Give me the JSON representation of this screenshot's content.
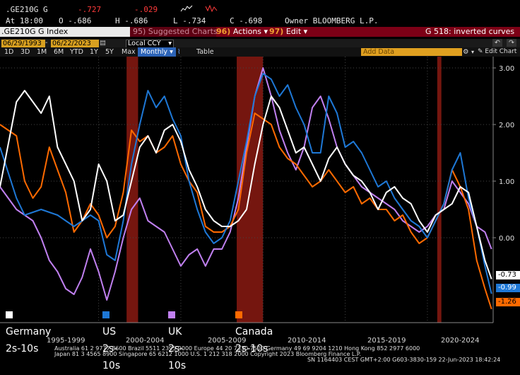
{
  "header": {
    "ticker": ".GE210G G",
    "last": "-.727",
    "change": "-.029",
    "at_label": "At 18:00",
    "open_label": "O -.686",
    "high_label": "H -.686",
    "low_label": "L -.734",
    "close_label": "C -.698",
    "owner_label": "Owner BLOOMBERG L.P."
  },
  "command_bar": {
    "index_label": ".GE210G G Index",
    "suggested_num": "95)",
    "suggested_label": "Suggested Charts",
    "actions_num": "96)",
    "actions_label": "Actions",
    "edit_num": "97)",
    "edit_label": "Edit",
    "title": "G 518: inverted curves"
  },
  "toolbar": {
    "start_date": "06/29/1993",
    "end_date": "06/22/2023",
    "currency": "Local CCY",
    "ranges": [
      "1D",
      "3D",
      "1M",
      "6M",
      "YTD",
      "1Y",
      "5Y",
      "Max"
    ],
    "frequency": "Monthly",
    "table_label": "Table",
    "add_data_placeholder": "Add Data",
    "edit_chart_label": "Edit Chart"
  },
  "legend": [
    {
      "name": "Germany 2s-10s",
      "color": "#ffffff"
    },
    {
      "name": "US 2s-10s",
      "color": "#1e78d6"
    },
    {
      "name": "UK 2s-10s",
      "color": "#c080f0"
    },
    {
      "name": "Canada 2s-10s",
      "color": "#ff6a00"
    }
  ],
  "last_values": [
    {
      "value": "-0.73",
      "bg": "#ffffff",
      "fg": "#000000"
    },
    {
      "value": "-0.99",
      "bg": "#1e78d6",
      "fg": "#ffffff"
    },
    {
      "value": "-1.26",
      "bg": "#ff6a00",
      "fg": "#000000"
    }
  ],
  "x_labels": [
    "1995-1999",
    "2000-2004",
    "2005-2009",
    "2010-2014",
    "2015-2019",
    "2020-2024"
  ],
  "footer": {
    "line1": "Australia 61 2 9777 8600 Brazil 5511 2395 9000 Europe 44 20 7330 7500 Germany 49 69 9204 1210 Hong Kong 852 2977 6000",
    "line2": "Japan 81 3 4565 8900        Singapore 65 6212 1000        U.S. 1 212 318 2000           Copyright 2023 Bloomberg Finance L.P.",
    "line3": "SN 1164403 CEST GMT+2:00 G603-3830-159 22-Jun-2023 18:42:24"
  },
  "chart_data": {
    "type": "line",
    "x_range": [
      1993.5,
      2023.5
    ],
    "ylim": [
      -1.5,
      3.2
    ],
    "yticks": [
      "3.00",
      "2.00",
      "1.00",
      "0.00"
    ],
    "recession_bands": [
      [
        2001.2,
        2001.9
      ],
      [
        2007.9,
        2009.5
      ],
      [
        2020.1,
        2020.35
      ]
    ],
    "series": [
      {
        "name": "Germany 2s-10s",
        "color": "#ffffff",
        "x": [
          1993.5,
          1994.5,
          1995,
          1996,
          1996.5,
          1997,
          1997.5,
          1998,
          1998.5,
          1999,
          1999.5,
          2000,
          2000.5,
          2001,
          2001.5,
          2002,
          2002.5,
          2003,
          2003.5,
          2004,
          2004.5,
          2005,
          2005.5,
          2006,
          2006.5,
          2007,
          2007.5,
          2008,
          2008.5,
          2009,
          2009.5,
          2010,
          2010.5,
          2011,
          2011.5,
          2012,
          2012.5,
          2013,
          2013.5,
          2014,
          2014.5,
          2015,
          2015.5,
          2016,
          2016.5,
          2017,
          2017.5,
          2018,
          2018.5,
          2019,
          2019.5,
          2020,
          2020.5,
          2021,
          2021.5,
          2022,
          2022.5,
          2023,
          2023.4
        ],
        "y": [
          0.9,
          2.4,
          2.6,
          2.2,
          2.5,
          1.6,
          1.3,
          1.0,
          0.3,
          0.5,
          1.3,
          1.0,
          0.3,
          0.4,
          1.0,
          1.6,
          1.8,
          1.5,
          1.9,
          2.0,
          1.7,
          1.2,
          0.9,
          0.5,
          0.3,
          0.2,
          0.2,
          0.3,
          0.5,
          1.3,
          2.0,
          2.5,
          2.3,
          1.9,
          1.5,
          1.6,
          1.3,
          1.0,
          1.4,
          1.6,
          1.3,
          1.1,
          1.0,
          0.8,
          0.5,
          0.8,
          0.9,
          0.7,
          0.6,
          0.3,
          0.1,
          0.4,
          0.5,
          0.6,
          0.9,
          0.8,
          0.2,
          -0.4,
          -0.73
        ]
      },
      {
        "name": "US 2s-10s",
        "color": "#1e78d6",
        "x": [
          1993.5,
          1994.5,
          1995,
          1996,
          1997,
          1998,
          1999,
          1999.5,
          2000,
          2000.5,
          2001,
          2001.5,
          2002,
          2002.5,
          2003,
          2003.5,
          2004,
          2004.5,
          2005,
          2005.5,
          2006,
          2006.5,
          2007,
          2007.5,
          2008,
          2008.5,
          2009,
          2009.5,
          2010,
          2010.5,
          2011,
          2011.5,
          2012,
          2012.5,
          2013,
          2013.5,
          2014,
          2014.5,
          2015,
          2015.5,
          2016,
          2016.5,
          2017,
          2017.5,
          2018,
          2018.5,
          2019,
          2019.5,
          2020,
          2020.5,
          2021,
          2021.5,
          2022,
          2022.5,
          2023,
          2023.4
        ],
        "y": [
          1.6,
          0.7,
          0.4,
          0.5,
          0.4,
          0.2,
          0.4,
          0.3,
          -0.3,
          -0.4,
          0.3,
          1.3,
          2.0,
          2.6,
          2.3,
          2.5,
          2.1,
          1.8,
          1.0,
          0.5,
          0.1,
          -0.1,
          0.0,
          0.3,
          1.0,
          1.7,
          2.5,
          2.9,
          2.8,
          2.5,
          2.7,
          2.3,
          2.0,
          1.5,
          1.5,
          2.5,
          2.2,
          1.6,
          1.7,
          1.5,
          1.2,
          0.9,
          1.0,
          0.7,
          0.5,
          0.3,
          0.2,
          0.0,
          0.3,
          0.6,
          1.2,
          1.5,
          0.7,
          0.2,
          -0.5,
          -0.99
        ]
      },
      {
        "name": "UK 2s-10s",
        "color": "#c080f0",
        "x": [
          1993.5,
          1994.5,
          1995,
          1995.5,
          1996,
          1996.5,
          1997,
          1997.5,
          1998,
          1998.5,
          1999,
          1999.5,
          2000,
          2000.5,
          2001,
          2001.5,
          2002,
          2002.5,
          2003,
          2003.5,
          2004,
          2004.5,
          2005,
          2005.5,
          2006,
          2006.5,
          2007,
          2007.5,
          2008,
          2008.5,
          2009,
          2009.5,
          2010,
          2010.5,
          2011,
          2011.5,
          2012,
          2012.5,
          2013,
          2013.5,
          2014,
          2014.5,
          2015,
          2015.5,
          2016,
          2016.5,
          2017,
          2017.5,
          2018,
          2018.5,
          2019,
          2019.5,
          2020,
          2020.5,
          2021,
          2021.5,
          2022,
          2022.5,
          2023,
          2023.4
        ],
        "y": [
          0.9,
          0.5,
          0.4,
          0.3,
          0.0,
          -0.4,
          -0.6,
          -0.9,
          -1.0,
          -0.7,
          -0.2,
          -0.6,
          -1.1,
          -0.6,
          0.0,
          0.5,
          0.7,
          0.3,
          0.2,
          0.1,
          -0.2,
          -0.5,
          -0.3,
          -0.2,
          -0.5,
          -0.2,
          -0.2,
          0.1,
          0.7,
          1.6,
          2.5,
          3.0,
          2.5,
          1.9,
          1.5,
          1.2,
          1.6,
          2.3,
          2.5,
          2.1,
          1.6,
          1.3,
          1.1,
          0.9,
          0.8,
          0.7,
          0.6,
          0.5,
          0.3,
          0.2,
          0.1,
          0.2,
          0.4,
          0.5,
          1.0,
          0.8,
          0.6,
          0.2,
          0.1,
          -0.2
        ]
      },
      {
        "name": "Canada 2s-10s",
        "color": "#ff6a00",
        "x": [
          1993.5,
          1994.5,
          1995,
          1995.5,
          1996,
          1996.5,
          1997,
          1997.5,
          1998,
          1998.5,
          1999,
          1999.5,
          2000,
          2000.5,
          2001,
          2001.5,
          2002,
          2002.5,
          2003,
          2003.5,
          2004,
          2004.5,
          2005,
          2005.5,
          2006,
          2006.5,
          2007,
          2007.5,
          2008,
          2008.5,
          2009,
          2009.5,
          2010,
          2010.5,
          2011,
          2011.5,
          2012,
          2012.5,
          2013,
          2013.5,
          2014,
          2014.5,
          2015,
          2015.5,
          2016,
          2016.5,
          2017,
          2017.5,
          2018,
          2018.5,
          2019,
          2019.5,
          2020,
          2020.5,
          2021,
          2021.5,
          2022,
          2022.5,
          2023,
          2023.4
        ],
        "y": [
          2.0,
          1.8,
          1.0,
          0.7,
          0.9,
          1.6,
          1.2,
          0.8,
          0.1,
          0.3,
          0.6,
          0.4,
          0.0,
          0.2,
          0.8,
          1.9,
          1.7,
          1.8,
          1.5,
          1.6,
          1.8,
          1.3,
          1.0,
          0.8,
          0.2,
          0.1,
          0.1,
          0.2,
          0.5,
          1.5,
          2.2,
          2.1,
          2.0,
          1.6,
          1.4,
          1.3,
          1.1,
          0.9,
          1.0,
          1.2,
          1.0,
          0.8,
          0.9,
          0.6,
          0.7,
          0.5,
          0.5,
          0.3,
          0.4,
          0.1,
          -0.1,
          0.0,
          0.3,
          0.6,
          1.2,
          0.9,
          0.5,
          -0.4,
          -0.9,
          -1.26
        ]
      }
    ]
  }
}
